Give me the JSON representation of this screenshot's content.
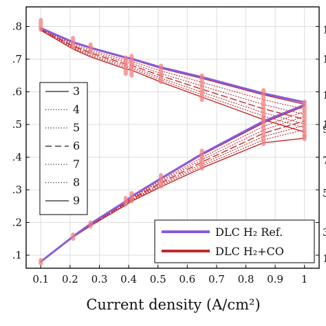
{
  "chart_data": {
    "type": "line",
    "xlabel": "Current density (A/cm²)",
    "ylabel": "",
    "xlim": [
      0.05,
      1.05
    ],
    "ylim": [
      0.06,
      0.86
    ],
    "grid": true,
    "x_ticks": [
      "0.1",
      "0.2",
      "0.3",
      "0.4",
      "0.5",
      "0.6",
      "0.7",
      "0.8",
      "0.9",
      "1"
    ],
    "y_ticks": [
      {
        "v": 0.1,
        "label": ".1"
      },
      {
        "v": 0.2,
        "label": ".2"
      },
      {
        "v": 0.3,
        "label": ".3"
      },
      {
        "v": 0.4,
        "label": ".4"
      },
      {
        "v": 0.5,
        "label": ".5"
      },
      {
        "v": 0.6,
        "label": ".6"
      },
      {
        "v": 0.7,
        "label": ".7"
      },
      {
        "v": 0.8,
        "label": ".8"
      }
    ],
    "right_axis_partial_labels": [
      "1",
      "1",
      "1",
      "1",
      "9",
      "7",
      "5",
      "3",
      "1"
    ],
    "colors": {
      "ref": "#8a5ad8",
      "co": "#c0282c",
      "marker": "#f08080",
      "legend_line": "#222222"
    },
    "line_legend": [
      {
        "label": "3",
        "style": "solid"
      },
      {
        "label": "4",
        "style": "dotted"
      },
      {
        "label": "5",
        "style": "dotted"
      },
      {
        "label": "6",
        "style": "dashed"
      },
      {
        "label": "7",
        "style": "dotted"
      },
      {
        "label": "8",
        "style": "dotted"
      },
      {
        "label": "9",
        "style": "solid"
      }
    ],
    "color_legend": [
      {
        "label": "DLC H₂ Ref.",
        "color_key": "ref"
      },
      {
        "label": "DLC H₂+CO",
        "color_key": "co"
      }
    ],
    "x": [
      0.1,
      0.21,
      0.27,
      0.39,
      0.41,
      0.51,
      0.65,
      0.86,
      1.0
    ],
    "series": [
      {
        "name": "DLC H₂ Ref.",
        "color_key": "ref",
        "style": "solid",
        "width": 3,
        "values": [
          0.795,
          0.752,
          0.735,
          0.705,
          0.701,
          0.675,
          0.645,
          0.595,
          0.568
        ]
      },
      {
        "color_key": "co",
        "style": "solid",
        "width": 1.4,
        "values": [
          0.795,
          0.751,
          0.733,
          0.703,
          0.699,
          0.672,
          0.641,
          0.591,
          0.562
        ]
      },
      {
        "color_key": "co",
        "style": "dotted",
        "width": 1.1,
        "values": [
          0.793,
          0.747,
          0.728,
          0.697,
          0.693,
          0.664,
          0.629,
          0.576,
          0.547
        ]
      },
      {
        "color_key": "co",
        "style": "dotted",
        "width": 1.1,
        "values": [
          0.792,
          0.743,
          0.723,
          0.691,
          0.687,
          0.656,
          0.618,
          0.561,
          0.531
        ]
      },
      {
        "color_key": "co",
        "style": "dashed",
        "width": 1.4,
        "values": [
          0.791,
          0.74,
          0.719,
          0.685,
          0.681,
          0.649,
          0.608,
          0.548,
          0.516
        ]
      },
      {
        "color_key": "co",
        "style": "dotted",
        "width": 1.1,
        "values": [
          0.79,
          0.737,
          0.715,
          0.68,
          0.676,
          0.642,
          0.599,
          0.536,
          0.502
        ]
      },
      {
        "color_key": "co",
        "style": "dotted",
        "width": 1.1,
        "values": [
          0.789,
          0.734,
          0.711,
          0.675,
          0.671,
          0.636,
          0.591,
          0.526,
          0.49
        ]
      },
      {
        "color_key": "co",
        "style": "solid",
        "width": 1.4,
        "values": [
          0.788,
          0.731,
          0.707,
          0.67,
          0.666,
          0.63,
          0.584,
          0.515,
          0.477
        ]
      },
      {
        "name": "DLC H₂ Ref.",
        "color_key": "ref",
        "style": "solid",
        "width": 3,
        "values": [
          0.08,
          0.157,
          0.196,
          0.265,
          0.28,
          0.335,
          0.41,
          0.51,
          0.56
        ]
      },
      {
        "color_key": "co",
        "style": "solid",
        "width": 1.4,
        "values": [
          0.08,
          0.157,
          0.196,
          0.265,
          0.279,
          0.333,
          0.407,
          0.505,
          0.556
        ]
      },
      {
        "color_key": "co",
        "style": "dotted",
        "width": 1.1,
        "values": [
          0.08,
          0.156,
          0.195,
          0.263,
          0.276,
          0.329,
          0.399,
          0.494,
          0.54
        ]
      },
      {
        "color_key": "co",
        "style": "dotted",
        "width": 1.1,
        "values": [
          0.08,
          0.156,
          0.194,
          0.261,
          0.274,
          0.325,
          0.392,
          0.483,
          0.525
        ]
      },
      {
        "color_key": "co",
        "style": "dashed",
        "width": 1.4,
        "values": [
          0.08,
          0.156,
          0.193,
          0.259,
          0.271,
          0.321,
          0.385,
          0.473,
          0.511
        ]
      },
      {
        "color_key": "co",
        "style": "dotted",
        "width": 1.1,
        "values": [
          0.08,
          0.155,
          0.192,
          0.257,
          0.269,
          0.317,
          0.379,
          0.463,
          0.497
        ]
      },
      {
        "color_key": "co",
        "style": "dotted",
        "width": 1.1,
        "values": [
          0.08,
          0.155,
          0.191,
          0.255,
          0.267,
          0.313,
          0.373,
          0.453,
          0.484
        ]
      },
      {
        "color_key": "co",
        "style": "solid",
        "width": 1.4,
        "values": [
          0.08,
          0.155,
          0.19,
          0.253,
          0.265,
          0.309,
          0.367,
          0.444,
          0.458
        ]
      }
    ],
    "markers": [
      {
        "x": 0.1,
        "y": [
          0.79,
          0.82
        ]
      },
      {
        "x": 0.21,
        "y": [
          0.735,
          0.765
        ]
      },
      {
        "x": 0.27,
        "y": [
          0.72,
          0.745
        ]
      },
      {
        "x": 0.39,
        "y": [
          0.655,
          0.705
        ]
      },
      {
        "x": 0.41,
        "y": [
          0.65,
          0.71
        ]
      },
      {
        "x": 0.51,
        "y": [
          0.63,
          0.68
        ]
      },
      {
        "x": 0.65,
        "y": [
          0.575,
          0.65
        ]
      },
      {
        "x": 0.86,
        "y": [
          0.515,
          0.605
        ]
      },
      {
        "x": 1.0,
        "y": [
          0.465,
          0.57
        ]
      },
      {
        "x": 0.1,
        "y": [
          0.075,
          0.085
        ]
      },
      {
        "x": 0.21,
        "y": [
          0.15,
          0.163
        ]
      },
      {
        "x": 0.27,
        "y": [
          0.188,
          0.2
        ]
      },
      {
        "x": 0.39,
        "y": [
          0.255,
          0.275
        ]
      },
      {
        "x": 0.41,
        "y": [
          0.265,
          0.29
        ]
      },
      {
        "x": 0.51,
        "y": [
          0.31,
          0.345
        ]
      },
      {
        "x": 0.65,
        "y": [
          0.365,
          0.42
        ]
      },
      {
        "x": 0.86,
        "y": [
          0.44,
          0.52
        ]
      },
      {
        "x": 1.0,
        "y": [
          0.455,
          0.465
        ]
      }
    ]
  }
}
